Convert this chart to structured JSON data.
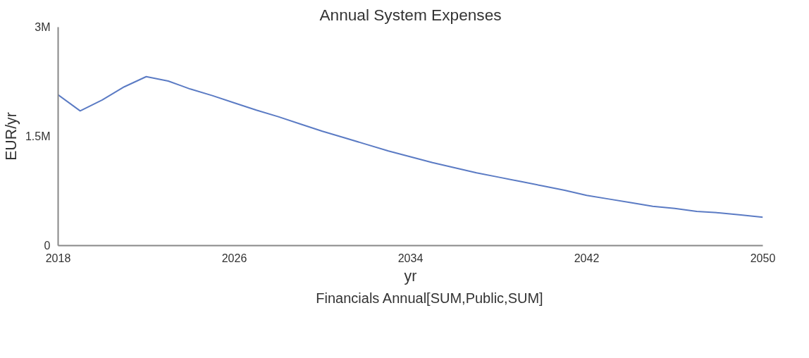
{
  "chart_data": {
    "type": "line",
    "title": "Annual System Expenses",
    "xlabel": "yr",
    "ylabel": "EUR/yr",
    "x": [
      2018,
      2019,
      2020,
      2021,
      2022,
      2023,
      2024,
      2025,
      2026,
      2027,
      2028,
      2029,
      2030,
      2031,
      2032,
      2033,
      2034,
      2035,
      2036,
      2037,
      2038,
      2039,
      2040,
      2041,
      2042,
      2043,
      2044,
      2045,
      2046,
      2047,
      2048,
      2049,
      2050
    ],
    "series": [
      {
        "name": "Financials Annual[SUM,Public,SUM]",
        "color": "#5b7bc4",
        "values": [
          2070000,
          1850000,
          2000000,
          2180000,
          2320000,
          2260000,
          2150000,
          2060000,
          1960000,
          1860000,
          1770000,
          1670000,
          1570000,
          1480000,
          1390000,
          1300000,
          1220000,
          1140000,
          1070000,
          1000000,
          940000,
          880000,
          820000,
          760000,
          690000,
          640000,
          590000,
          540000,
          510000,
          470000,
          450000,
          420000,
          390000
        ]
      }
    ],
    "xlim": [
      2018,
      2050
    ],
    "xticks": [
      2018,
      2026,
      2034,
      2042,
      2050
    ],
    "ylim": [
      0,
      3000000
    ],
    "yticks": [
      {
        "value": 0,
        "label": "0"
      },
      {
        "value": 1500000,
        "label": "1.5M"
      },
      {
        "value": 3000000,
        "label": "3M"
      }
    ],
    "grid": false,
    "legend": "bottom",
    "marker": "none",
    "line_style": "solid"
  }
}
